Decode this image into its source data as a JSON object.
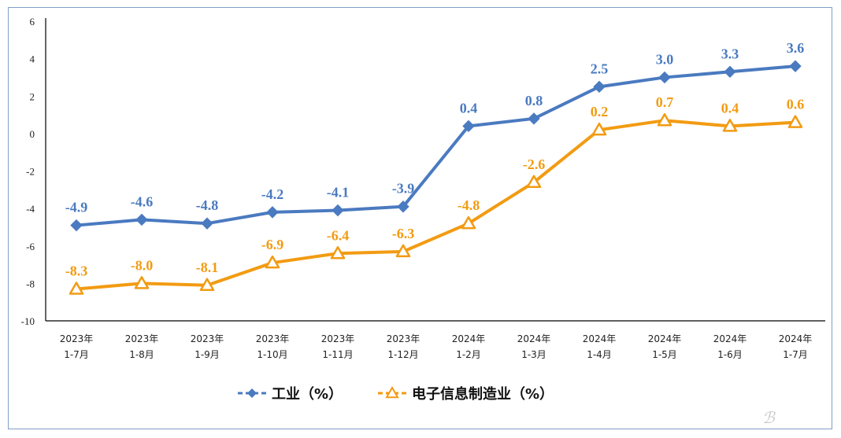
{
  "chart_data": {
    "type": "line",
    "categories": [
      [
        "2023年",
        "1-7月"
      ],
      [
        "2023年",
        "1-8月"
      ],
      [
        "2023年",
        "1-9月"
      ],
      [
        "2023年",
        "1-10月"
      ],
      [
        "2023年",
        "1-11月"
      ],
      [
        "2023年",
        "1-12月"
      ],
      [
        "2024年",
        "1-2月"
      ],
      [
        "2024年",
        "1-3月"
      ],
      [
        "2024年",
        "1-4月"
      ],
      [
        "2024年",
        "1-5月"
      ],
      [
        "2024年",
        "1-6月"
      ],
      [
        "2024年",
        "1-7月"
      ]
    ],
    "series": [
      {
        "name": "工业（%）",
        "color": "#4a7ac0",
        "marker": "diamond",
        "values": [
          -4.9,
          -4.6,
          -4.8,
          -4.2,
          -4.1,
          -3.9,
          0.4,
          0.8,
          2.5,
          3.0,
          3.3,
          3.6
        ],
        "labels": [
          "-4.9",
          "-4.6",
          "-4.8",
          "-4.2",
          "-4.1",
          "-3.9",
          "0.4",
          "0.8",
          "2.5",
          "3.0",
          "3.3",
          "3.6"
        ]
      },
      {
        "name": "电子信息制造业（%）",
        "color": "#f29b12",
        "marker": "triangle",
        "values": [
          -8.3,
          -8.0,
          -8.1,
          -6.9,
          -6.4,
          -6.3,
          -4.8,
          -2.6,
          0.2,
          0.7,
          0.4,
          0.6
        ],
        "labels": [
          "-8.3",
          "-8.0",
          "-8.1",
          "-6.9",
          "-6.4",
          "-6.3",
          "-4.8",
          "-2.6",
          "0.2",
          "0.7",
          "0.4",
          "0.6"
        ]
      }
    ],
    "ylim": [
      -10,
      6
    ],
    "yticks": [
      "-10",
      "-8",
      "-6",
      "-4",
      "-2",
      "0",
      "2",
      "4",
      "6"
    ],
    "grid": false,
    "legend_position": "bottom"
  }
}
